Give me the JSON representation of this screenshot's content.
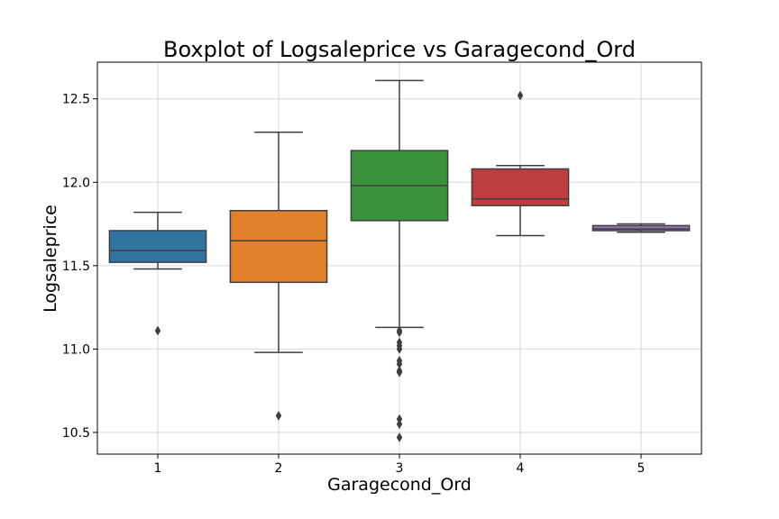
{
  "chart_data": {
    "type": "boxplot",
    "title": "Boxplot of Logsaleprice vs Garagecond_Ord",
    "xlabel": "Garagecond_Ord",
    "ylabel": "Logsaleprice",
    "categories": [
      "1",
      "2",
      "3",
      "4",
      "5"
    ],
    "ylim": [
      10.37,
      12.72
    ],
    "yticks": [
      "10.5",
      "11.0",
      "11.5",
      "12.0",
      "12.5"
    ],
    "grid": true,
    "colors": [
      "#3274a1",
      "#e1812c",
      "#3a923a",
      "#c03d3e",
      "#9372b2"
    ],
    "boxes": [
      {
        "category": "1",
        "whisker_low": 11.48,
        "q1": 11.52,
        "median": 11.59,
        "q3": 11.71,
        "whisker_high": 11.82,
        "outliers": [
          11.11
        ]
      },
      {
        "category": "2",
        "whisker_low": 10.98,
        "q1": 11.4,
        "median": 11.65,
        "q3": 11.83,
        "whisker_high": 12.3,
        "outliers": [
          10.6
        ]
      },
      {
        "category": "3",
        "whisker_low": 11.13,
        "q1": 11.77,
        "median": 11.98,
        "q3": 12.19,
        "whisker_high": 12.61,
        "outliers": [
          11.11,
          11.1,
          11.04,
          11.02,
          11.0,
          10.93,
          10.91,
          10.87,
          10.86,
          10.58,
          10.55,
          10.47
        ]
      },
      {
        "category": "4",
        "whisker_low": 11.68,
        "q1": 11.86,
        "median": 11.9,
        "q3": 12.08,
        "whisker_high": 12.1,
        "outliers": [
          12.52
        ]
      },
      {
        "category": "5",
        "whisker_low": 11.7,
        "q1": 11.71,
        "median": 11.72,
        "q3": 11.74,
        "whisker_high": 11.75,
        "outliers": []
      }
    ]
  }
}
